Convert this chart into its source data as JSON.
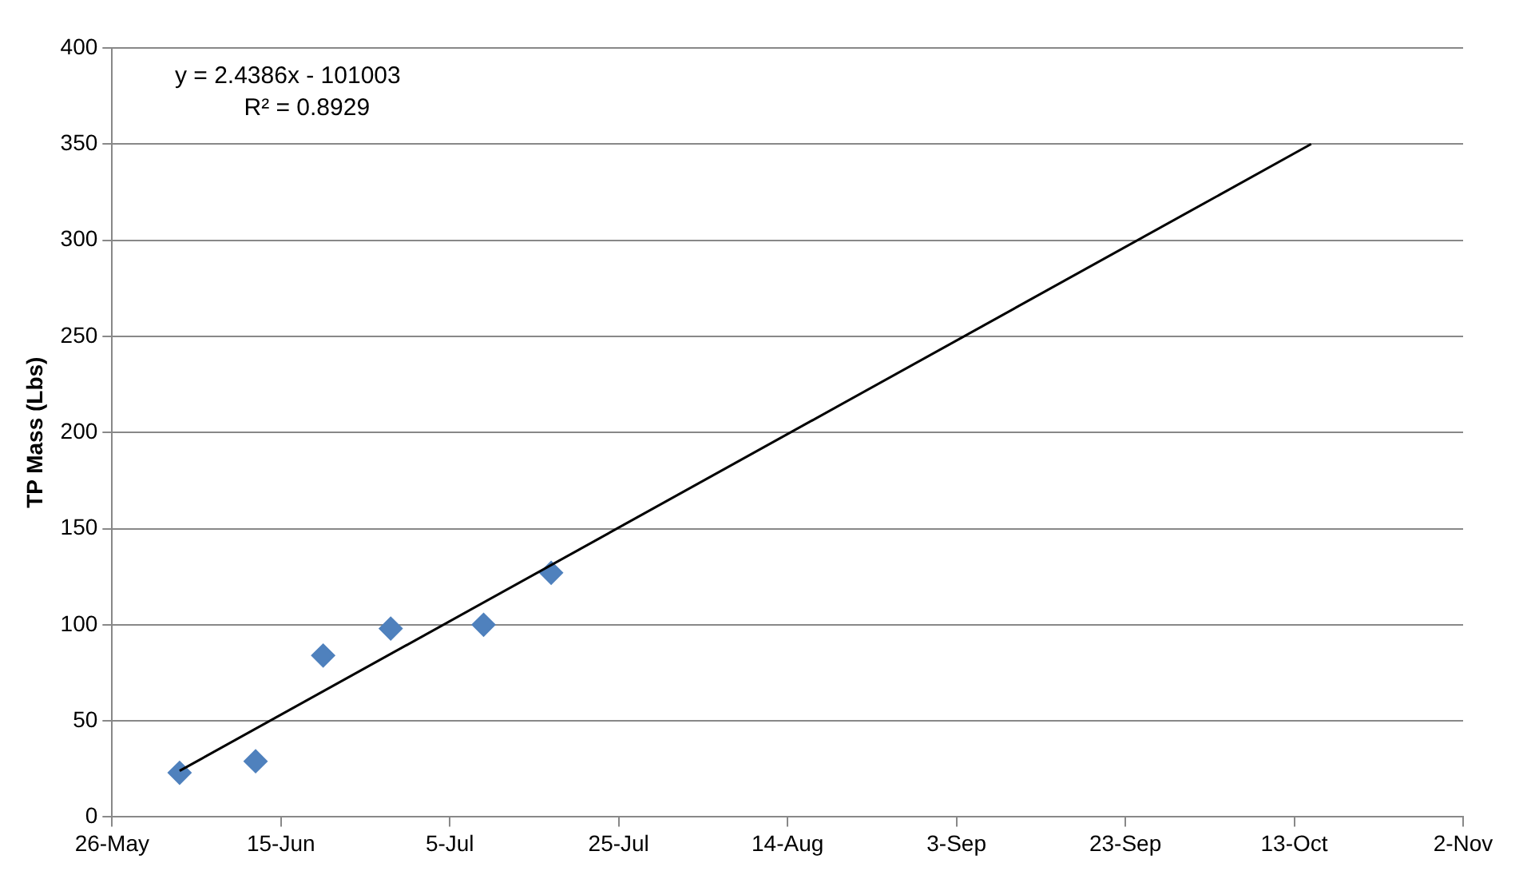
{
  "chart_data": {
    "type": "scatter",
    "ylabel": "TP Mass (Lbs)",
    "marker": "diamond",
    "grid": "y",
    "legend": false,
    "annotations": [
      "y = 2.4386x - 101003",
      "R² = 0.8929"
    ],
    "xlim": [
      "--05-26",
      "--11-02"
    ],
    "xticks": [
      {
        "value": "--05-26",
        "label": "26-May"
      },
      {
        "value": "--06-15",
        "label": "15-Jun"
      },
      {
        "value": "--07-05",
        "label": "5-Jul"
      },
      {
        "value": "--07-25",
        "label": "25-Jul"
      },
      {
        "value": "--08-14",
        "label": "14-Aug"
      },
      {
        "value": "--09-03",
        "label": "3-Sep"
      },
      {
        "value": "--09-23",
        "label": "23-Sep"
      },
      {
        "value": "--10-13",
        "label": "13-Oct"
      },
      {
        "value": "--11-02",
        "label": "2-Nov"
      }
    ],
    "ylim": [
      0,
      400
    ],
    "yticks": [
      0,
      50,
      100,
      150,
      200,
      250,
      300,
      350,
      400
    ],
    "series": [
      {
        "type": "scatter",
        "color": "#4f81bd",
        "x": [
          "--06-03",
          "--06-12",
          "--06-20",
          "--06-28",
          "--07-09",
          "--07-17"
        ],
        "values": [
          23,
          29,
          84,
          98,
          100,
          127
        ]
      },
      {
        "type": "line",
        "color": "#000000",
        "marker": "none",
        "x": [
          "--06-03",
          "--10-15"
        ],
        "values": [
          24,
          350
        ]
      }
    ]
  }
}
